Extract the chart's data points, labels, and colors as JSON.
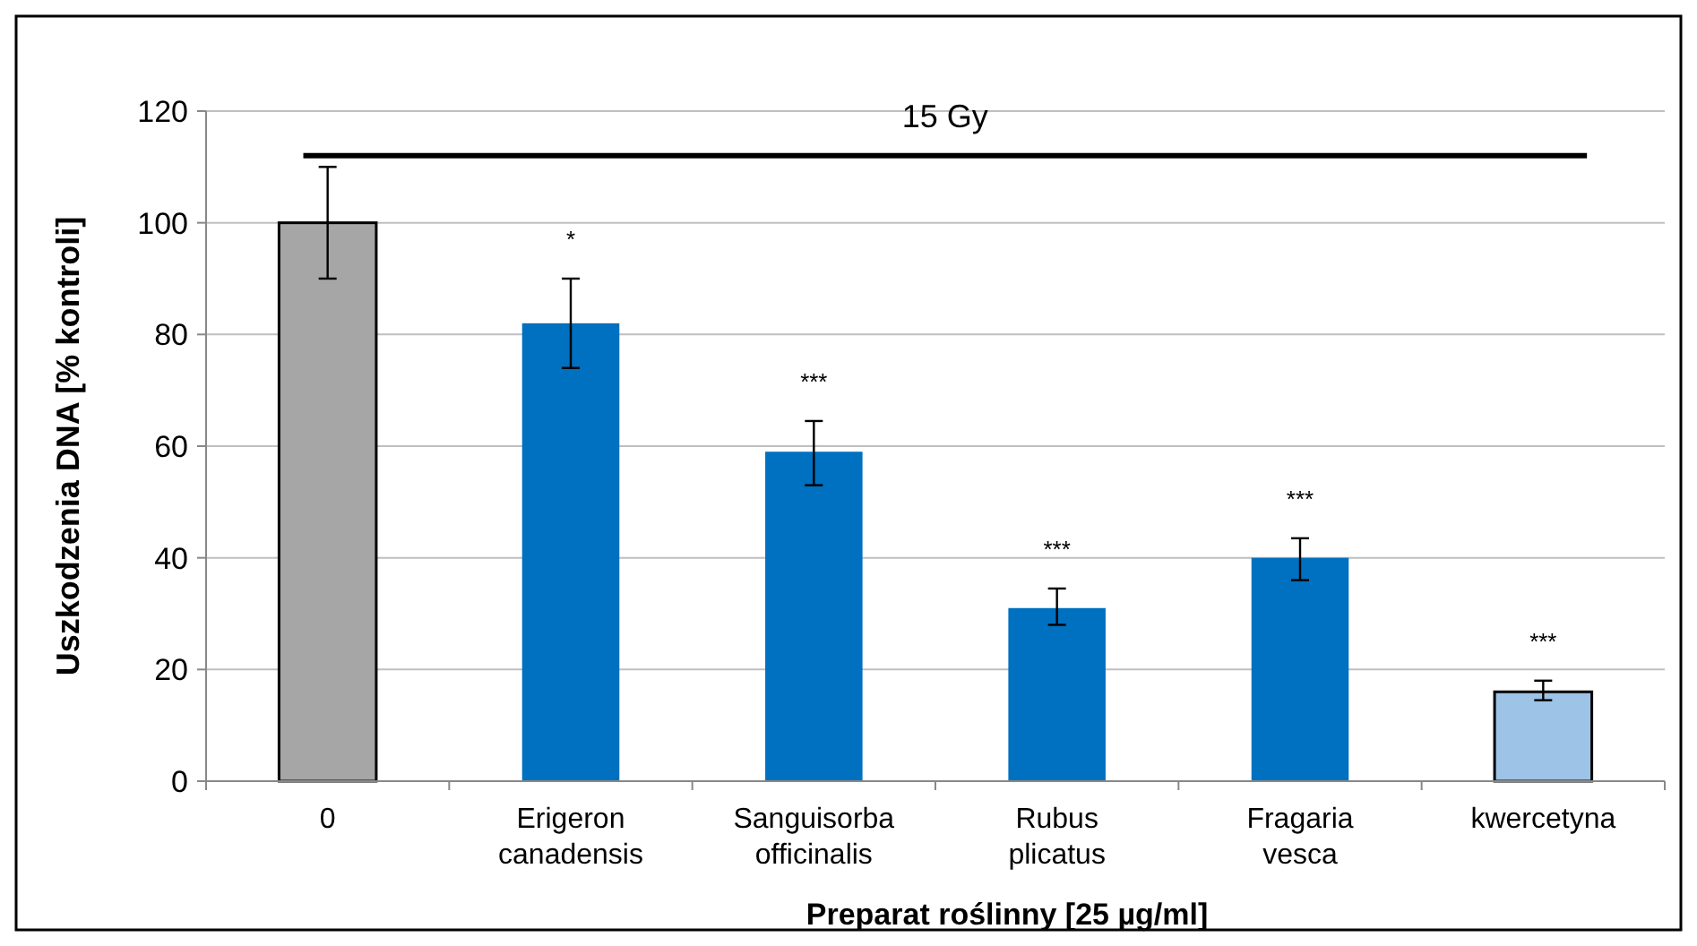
{
  "chart_data": {
    "type": "bar",
    "categories": [
      "0",
      "Erigeron canadensis",
      "Sanguisorba officinalis",
      "Rubus plicatus",
      "Fragaria vesca",
      "kwercetyna"
    ],
    "values": [
      100,
      82,
      59,
      31,
      40,
      16
    ],
    "colors": [
      "#a6a6a6",
      "#0070c0",
      "#0070c0",
      "#0070c0",
      "#0070c0",
      "#9dc3e6"
    ],
    "errors": [
      [
        90,
        110
      ],
      [
        74,
        90
      ],
      [
        53,
        64.5
      ],
      [
        28,
        34.5
      ],
      [
        36,
        43.5
      ],
      [
        14.5,
        18
      ]
    ],
    "xlabel": "Preparat roślinny [25 µg/ml]",
    "ylabel": "Uszkodzenia DNA [% kontroli]",
    "ylim": [
      0,
      120
    ],
    "yticks": [
      0,
      20,
      40,
      60,
      80,
      100,
      120
    ],
    "grid": "y",
    "ref_lines": [
      {
        "axis": "y",
        "value": 112,
        "label": "15 Gy",
        "color": "#000000"
      }
    ],
    "annotations": [
      "*",
      "***",
      "***",
      "***",
      "***"
    ]
  }
}
